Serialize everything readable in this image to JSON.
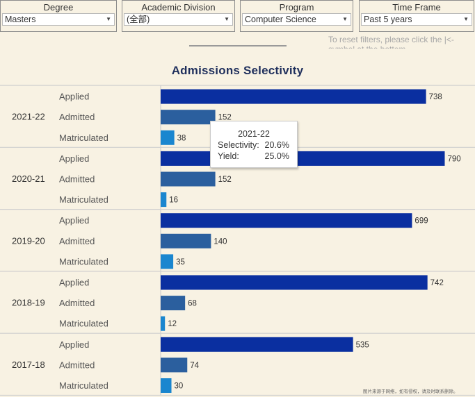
{
  "filters": [
    {
      "label": "Degree",
      "value": "Masters"
    },
    {
      "label": "Academic Division",
      "value": "(全部)"
    },
    {
      "label": "Program",
      "value": "Computer Science"
    },
    {
      "label": "Time Frame",
      "value": "Past 5 years"
    }
  ],
  "reset_note": "To reset filters, please click the |<- symbol at the bottom",
  "chart_data": {
    "type": "bar",
    "orientation": "horizontal",
    "title": "Admissions Selectivity",
    "categories": [
      "2021-22",
      "2020-21",
      "2019-20",
      "2018-19",
      "2017-18"
    ],
    "measures": [
      "Applied",
      "Admitted",
      "Matriculated"
    ],
    "series": [
      {
        "name": "Applied",
        "color": "#0a2fa0",
        "values": [
          738,
          790,
          699,
          742,
          535
        ]
      },
      {
        "name": "Admitted",
        "color": "#2b5f9e",
        "values": [
          152,
          152,
          140,
          68,
          74
        ]
      },
      {
        "name": "Matriculated",
        "color": "#1a86cf",
        "values": [
          38,
          16,
          35,
          12,
          30
        ]
      }
    ],
    "xlim": [
      0,
      820
    ],
    "grid": false,
    "legend": "none"
  },
  "tooltip": {
    "title": "2021-22",
    "rows": [
      {
        "label": "Selectivity:",
        "value": "20.6%"
      },
      {
        "label": "Yield:",
        "value": "25.0%"
      }
    ]
  },
  "watermark": "图片来源于网络，如有侵权，请及时联系删除。"
}
